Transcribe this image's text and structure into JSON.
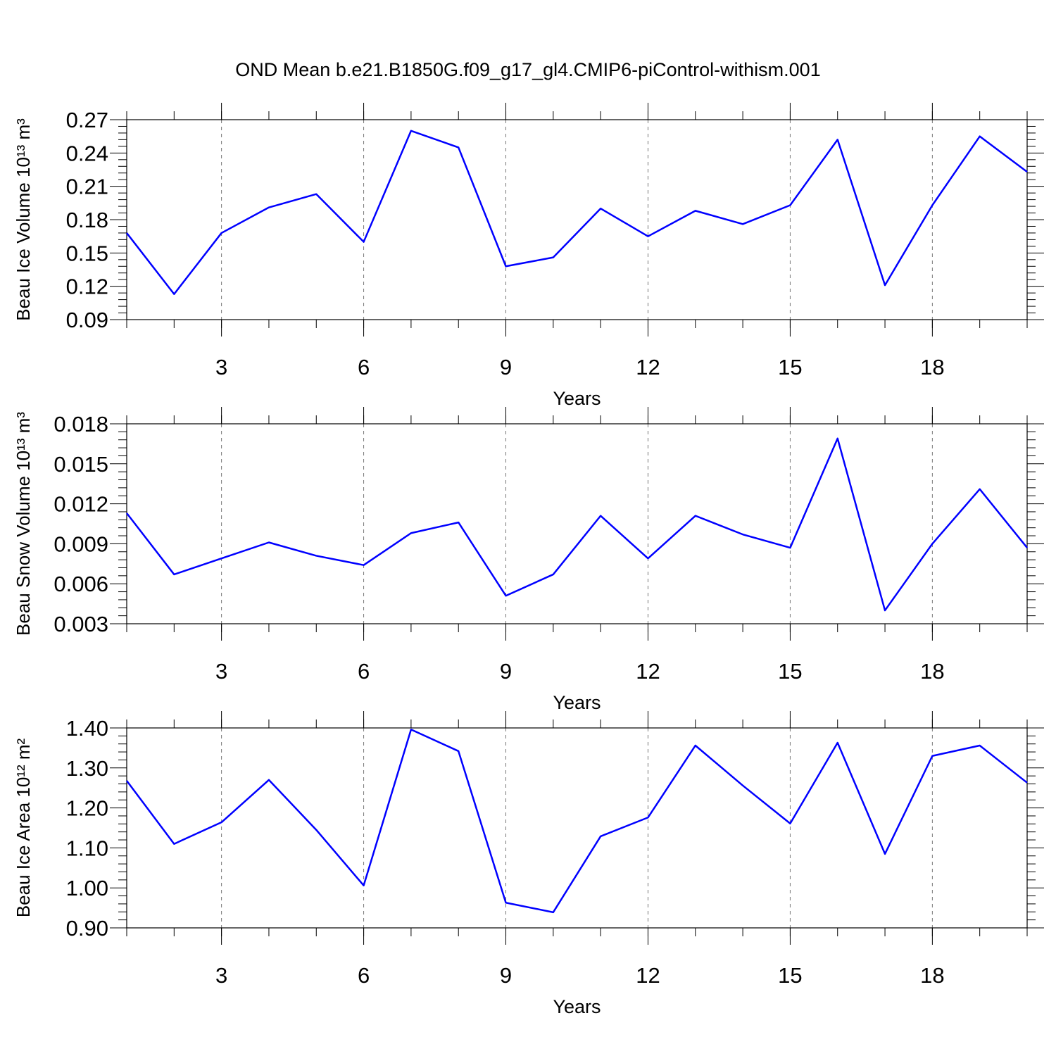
{
  "title": "OND Mean b.e21.B1850G.f09_g17_gl4.CMIP6-piControl-withism.001",
  "chart_data": [
    {
      "type": "line",
      "y_label": "Beau Ice Volume 10¹³ m³",
      "x_label": "Years",
      "color": "#0000ff",
      "grid": true,
      "x": [
        1,
        2,
        3,
        4,
        5,
        6,
        7,
        8,
        9,
        10,
        11,
        12,
        13,
        14,
        15,
        16,
        17,
        18,
        19,
        20
      ],
      "values": [
        0.168,
        0.113,
        0.168,
        0.191,
        0.203,
        0.16,
        0.26,
        0.245,
        0.138,
        0.146,
        0.19,
        0.165,
        0.188,
        0.176,
        0.193,
        0.252,
        0.121,
        0.193,
        0.255,
        0.223
      ],
      "xlim": [
        1,
        20
      ],
      "xticks": [
        3,
        6,
        9,
        12,
        15,
        18
      ],
      "ylim": [
        0.09,
        0.27
      ],
      "yticks": [
        0.09,
        0.12,
        0.15,
        0.18,
        0.21,
        0.24,
        0.27
      ]
    },
    {
      "type": "line",
      "y_label": "Beau Snow Volume 10¹³ m³",
      "x_label": "Years",
      "color": "#0000ff",
      "grid": true,
      "x": [
        1,
        2,
        3,
        4,
        5,
        6,
        7,
        8,
        9,
        10,
        11,
        12,
        13,
        14,
        15,
        16,
        17,
        18,
        19,
        20
      ],
      "values": [
        0.0113,
        0.0067,
        0.0079,
        0.0091,
        0.0081,
        0.0074,
        0.0098,
        0.0106,
        0.0051,
        0.0067,
        0.0111,
        0.0079,
        0.0111,
        0.0097,
        0.0087,
        0.0169,
        0.004,
        0.009,
        0.0131,
        0.0087
      ],
      "xlim": [
        1,
        20
      ],
      "xticks": [
        3,
        6,
        9,
        12,
        15,
        18
      ],
      "ylim": [
        0.003,
        0.018
      ],
      "yticks": [
        0.003,
        0.006,
        0.009,
        0.012,
        0.015,
        0.018
      ]
    },
    {
      "type": "line",
      "y_label": "Beau Ice Area 10¹² m²",
      "x_label": "Years",
      "color": "#0000ff",
      "grid": true,
      "x": [
        1,
        2,
        3,
        4,
        5,
        6,
        7,
        8,
        9,
        10,
        11,
        12,
        13,
        14,
        15,
        16,
        17,
        18,
        19,
        20
      ],
      "values": [
        1.268,
        1.11,
        1.164,
        1.27,
        1.145,
        1.006,
        1.396,
        1.342,
        0.963,
        0.939,
        1.129,
        1.176,
        1.356,
        1.256,
        1.161,
        1.363,
        1.085,
        1.33,
        1.356,
        1.263
      ],
      "xlim": [
        1,
        20
      ],
      "xticks": [
        3,
        6,
        9,
        12,
        15,
        18
      ],
      "ylim": [
        0.9,
        1.4
      ],
      "yticks": [
        {
          "value": 0.9,
          "label": "0.90"
        },
        {
          "value": 1.0,
          "label": "1.00"
        },
        {
          "value": 1.1,
          "label": "1.10"
        },
        {
          "value": 1.2,
          "label": "1.20"
        },
        {
          "value": 1.3,
          "label": "1.30"
        },
        {
          "value": 1.4,
          "label": "1.40"
        }
      ]
    }
  ]
}
